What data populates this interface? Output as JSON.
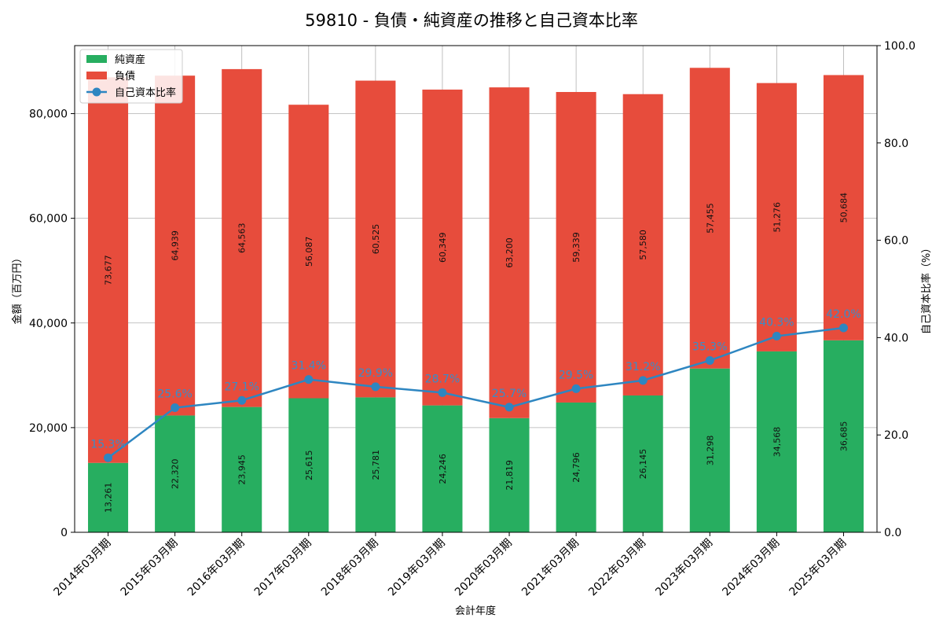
{
  "chart_data": {
    "type": "bar",
    "title": "59810 - 負債・純資産の推移と自己資本比率",
    "xlabel": "会計年度",
    "ylabel": "金額（百万円）",
    "y2label": "自己資本比率（%）",
    "ylim": [
      0,
      93000
    ],
    "y2lim": [
      0,
      100
    ],
    "yticks": [
      "0",
      "20,000",
      "40,000",
      "60,000",
      "80,000"
    ],
    "yticks_values": [
      0,
      20000,
      40000,
      60000,
      80000
    ],
    "y2ticks": [
      "0.0",
      "20.0",
      "40.0",
      "60.0",
      "80.0",
      "100.0"
    ],
    "y2ticks_values": [
      0,
      20,
      40,
      60,
      80,
      100
    ],
    "grid": true,
    "legend_position": "top-left",
    "categories": [
      "2014年03月期",
      "2015年03月期",
      "2016年03月期",
      "2017年03月期",
      "2018年03月期",
      "2019年03月期",
      "2020年03月期",
      "2021年03月期",
      "2022年03月期",
      "2023年03月期",
      "2024年03月期",
      "2025年03月期"
    ],
    "series": [
      {
        "name": "純資産",
        "kind": "bar",
        "color": "#27ae60",
        "values": [
          13261,
          22320,
          23945,
          25615,
          25781,
          24246,
          21819,
          24796,
          26145,
          31298,
          34568,
          36685
        ],
        "labels": [
          "13,261",
          "22,320",
          "23,945",
          "25,615",
          "25,781",
          "24,246",
          "21,819",
          "24,796",
          "26,145",
          "31,298",
          "34,568",
          "36,685"
        ]
      },
      {
        "name": "負債",
        "kind": "bar",
        "color": "#e74c3c",
        "values": [
          73677,
          64939,
          64563,
          56087,
          60525,
          60349,
          63200,
          59339,
          57580,
          57455,
          51276,
          50684
        ],
        "labels": [
          "73,677",
          "64,939",
          "64,563",
          "56,087",
          "60,525",
          "60,349",
          "63,200",
          "59,339",
          "57,580",
          "57,455",
          "51,276",
          "50,684"
        ]
      },
      {
        "name": "自己資本比率",
        "kind": "line",
        "color": "#2e86c1",
        "values": [
          15.3,
          25.6,
          27.1,
          31.4,
          29.9,
          28.7,
          25.7,
          29.5,
          31.2,
          35.3,
          40.3,
          42.0
        ],
        "labels": [
          "15.3%",
          "25.6%",
          "27.1%",
          "31.4%",
          "29.9%",
          "28.7%",
          "25.7%",
          "29.5%",
          "31.2%",
          "35.3%",
          "40.3%",
          "42.0%"
        ]
      }
    ]
  }
}
